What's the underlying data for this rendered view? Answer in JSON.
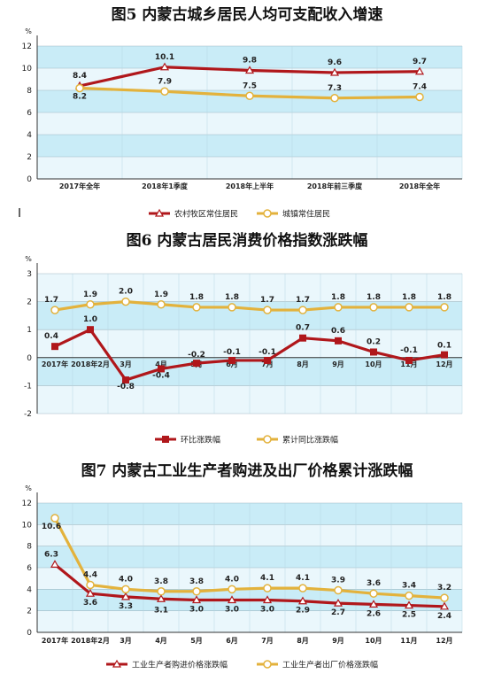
{
  "chart_data": [
    {
      "type": "line",
      "title": "图5  内蒙古城乡居民人均可支配收入增速",
      "unit": "%",
      "categories": [
        "2017年全年",
        "2018年1季度",
        "2018年上半年",
        "2018年前三季度",
        "2018年全年"
      ],
      "ylim": [
        0,
        12
      ],
      "yticks": [
        0,
        2,
        4,
        6,
        8,
        10,
        12
      ],
      "series": [
        {
          "name": "农村牧区常住居民",
          "values": [
            8.4,
            10.1,
            9.8,
            9.6,
            9.7
          ],
          "labels": [
            "8.4",
            "10.1",
            "9.8",
            "9.6",
            "9.7"
          ],
          "color": "#b0171b",
          "marker": "triangle"
        },
        {
          "name": "城镇常住居民",
          "values": [
            8.2,
            7.9,
            7.5,
            7.3,
            7.4
          ],
          "labels": [
            "8.2",
            "7.9",
            "7.5",
            "7.3",
            "7.4"
          ],
          "color": "#e3b23c",
          "marker": "circle"
        }
      ],
      "grid": true,
      "legend": "bottom"
    },
    {
      "type": "line",
      "title": "图6  内蒙古居民消费价格指数涨跌幅",
      "unit": "%",
      "categories": [
        "2017年",
        "2018年2月",
        "3月",
        "4月",
        "5月",
        "6月",
        "7月",
        "8月",
        "9月",
        "10月",
        "11月",
        "12月"
      ],
      "ylim": [
        -2,
        3
      ],
      "yticks": [
        -2,
        -1,
        0,
        1,
        2,
        3
      ],
      "series": [
        {
          "name": "环比涨跌幅",
          "values": [
            0.4,
            1.0,
            -0.8,
            -0.4,
            -0.2,
            -0.1,
            -0.1,
            0.7,
            0.6,
            0.2,
            -0.1,
            0.1
          ],
          "labels": [
            "0.4",
            "1.0",
            "-0.8",
            "-0.4",
            "-0.2",
            "-0.1",
            "-0.1",
            "0.7",
            "0.6",
            "0.2",
            "-0.1",
            "0.1"
          ],
          "color": "#b0171b",
          "marker": "square"
        },
        {
          "name": "累计同比涨跌幅",
          "values": [
            1.7,
            1.9,
            2.0,
            1.9,
            1.8,
            1.8,
            1.7,
            1.7,
            1.8,
            1.8,
            1.8,
            1.8
          ],
          "labels": [
            "1.7",
            "1.9",
            "2.0",
            "1.9",
            "1.8",
            "1.8",
            "1.7",
            "1.7",
            "1.8",
            "1.8",
            "1.8",
            "1.8"
          ],
          "color": "#e3b23c",
          "marker": "circle"
        }
      ],
      "grid": true,
      "legend": "bottom"
    },
    {
      "type": "line",
      "title": "图7  内蒙古工业生产者购进及出厂价格累计涨跌幅",
      "unit": "%",
      "categories": [
        "2017年",
        "2018年2月",
        "3月",
        "4月",
        "5月",
        "6月",
        "7月",
        "8月",
        "9月",
        "10月",
        "11月",
        "12月"
      ],
      "ylim": [
        0,
        12
      ],
      "yticks": [
        0,
        2,
        4,
        6,
        8,
        10,
        12
      ],
      "series": [
        {
          "name": "工业生产者购进价格涨跌幅",
          "values": [
            6.3,
            3.6,
            3.3,
            3.1,
            3.0,
            3.0,
            3.0,
            2.9,
            2.7,
            2.6,
            2.5,
            2.4
          ],
          "labels": [
            "6.3",
            "3.6",
            "3.3",
            "3.1",
            "3.0",
            "3.0",
            "3.0",
            "2.9",
            "2.7",
            "2.6",
            "2.5",
            "2.4"
          ],
          "color": "#b0171b",
          "marker": "triangle"
        },
        {
          "name": "工业生产者出厂价格涨跌幅",
          "values": [
            10.6,
            4.4,
            4.0,
            3.8,
            3.8,
            4.0,
            4.1,
            4.1,
            3.9,
            3.6,
            3.4,
            3.2
          ],
          "labels": [
            "10.6",
            "4.4",
            "4.0",
            "3.8",
            "3.8",
            "4.0",
            "4.1",
            "4.1",
            "3.9",
            "3.6",
            "3.4",
            "3.2"
          ],
          "color": "#e3b23c",
          "marker": "circle"
        }
      ],
      "grid": true,
      "legend": "bottom"
    }
  ]
}
